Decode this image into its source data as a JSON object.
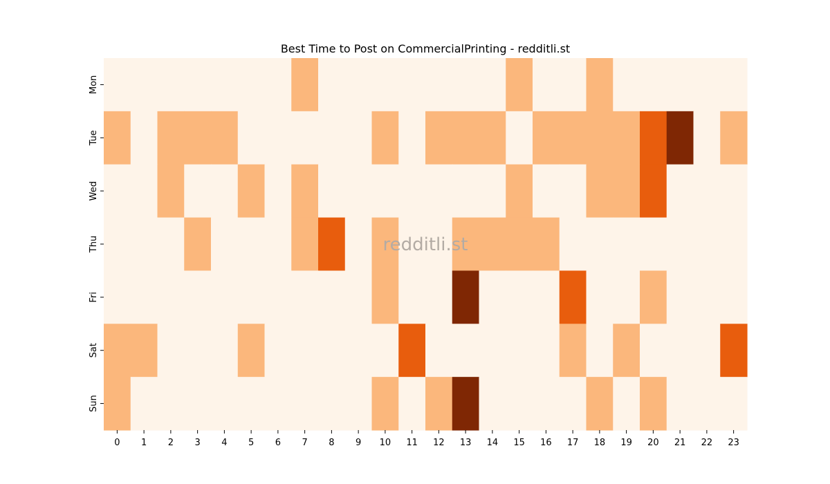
{
  "chart_data": {
    "type": "heatmap",
    "title": "Best Time to Post on CommercialPrinting - redditli.st",
    "watermark": "redditli.st",
    "x_categories": [
      "0",
      "1",
      "2",
      "3",
      "4",
      "5",
      "6",
      "7",
      "8",
      "9",
      "10",
      "11",
      "12",
      "13",
      "14",
      "15",
      "16",
      "17",
      "18",
      "19",
      "20",
      "21",
      "22",
      "23"
    ],
    "y_categories": [
      "Mon",
      "Tue",
      "Wed",
      "Thu",
      "Fri",
      "Sat",
      "Sun"
    ],
    "xlabel": "",
    "ylabel": "",
    "colormap": "Oranges",
    "level_colors": [
      "#fef4e9",
      "#fbb77c",
      "#e85d0d",
      "#7f2704"
    ],
    "values": [
      [
        0,
        0,
        0,
        0,
        0,
        0,
        0,
        1,
        0,
        0,
        0,
        0,
        0,
        0,
        0,
        1,
        0,
        0,
        1,
        0,
        0,
        0,
        0,
        0
      ],
      [
        1,
        0,
        1,
        1,
        1,
        0,
        0,
        0,
        0,
        0,
        1,
        0,
        1,
        1,
        1,
        0,
        1,
        1,
        1,
        1,
        2,
        3,
        0,
        1
      ],
      [
        0,
        0,
        1,
        0,
        0,
        1,
        0,
        1,
        0,
        0,
        0,
        0,
        0,
        0,
        0,
        1,
        0,
        0,
        1,
        1,
        2,
        0,
        0,
        0
      ],
      [
        0,
        0,
        0,
        1,
        0,
        0,
        0,
        1,
        2,
        0,
        1,
        0,
        0,
        1,
        1,
        1,
        1,
        0,
        0,
        0,
        0,
        0,
        0,
        0
      ],
      [
        0,
        0,
        0,
        0,
        0,
        0,
        0,
        0,
        0,
        0,
        1,
        0,
        0,
        3,
        0,
        0,
        0,
        2,
        0,
        0,
        1,
        0,
        0,
        0
      ],
      [
        1,
        1,
        0,
        0,
        0,
        1,
        0,
        0,
        0,
        0,
        0,
        2,
        0,
        0,
        0,
        0,
        0,
        1,
        0,
        1,
        0,
        0,
        0,
        2
      ],
      [
        1,
        0,
        0,
        0,
        0,
        0,
        0,
        0,
        0,
        0,
        1,
        0,
        1,
        3,
        0,
        0,
        0,
        0,
        1,
        0,
        1,
        0,
        0,
        0
      ]
    ]
  }
}
